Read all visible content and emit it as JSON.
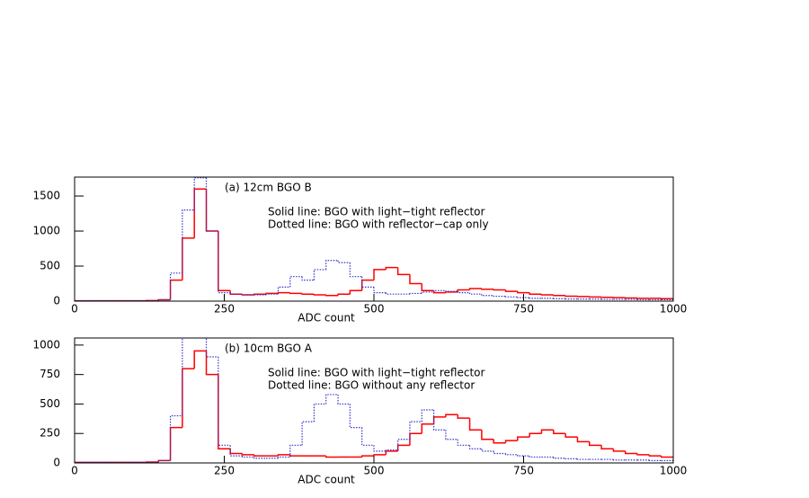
{
  "chart_data": [
    {
      "type": "histogram",
      "bins": [
        0,
        20,
        40,
        60,
        80,
        100,
        120,
        140,
        160,
        180,
        200,
        220,
        240,
        260,
        280,
        300,
        320,
        340,
        360,
        380,
        400,
        420,
        440,
        460,
        480,
        500,
        520,
        540,
        560,
        580,
        600,
        620,
        640,
        660,
        680,
        700,
        720,
        740,
        760,
        780,
        800,
        820,
        840,
        860,
        880,
        900,
        920,
        940,
        960,
        980,
        1000
      ],
      "series": [
        {
          "name": "Solid line: BGO with light−tight reflector",
          "color": "#ff0000",
          "line_style": "solid",
          "values": [
            5,
            5,
            5,
            5,
            5,
            5,
            8,
            20,
            300,
            900,
            1600,
            1000,
            150,
            100,
            90,
            100,
            110,
            120,
            110,
            100,
            90,
            80,
            100,
            150,
            300,
            450,
            480,
            380,
            250,
            150,
            120,
            130,
            160,
            180,
            170,
            160,
            140,
            120,
            100,
            90,
            80,
            70,
            65,
            60,
            55,
            50,
            45,
            40,
            40,
            35
          ]
        },
        {
          "name": "Dotted line: BGO with reflector−cap only",
          "color": "#3333cc",
          "line_style": "dotted",
          "values": [
            5,
            5,
            5,
            5,
            5,
            5,
            5,
            20,
            400,
            1300,
            1760,
            1000,
            120,
            100,
            90,
            90,
            100,
            200,
            350,
            300,
            450,
            580,
            550,
            350,
            200,
            120,
            100,
            100,
            110,
            130,
            150,
            140,
            120,
            100,
            80,
            70,
            60,
            50,
            40,
            40,
            35,
            30,
            30,
            30,
            25,
            25,
            25,
            20,
            20,
            20
          ]
        }
      ],
      "annotations": [
        "(a) 12cm BGO B"
      ],
      "xlabel": "ADC count",
      "xlim": [
        0,
        1000
      ],
      "xticks": [
        0,
        250,
        500,
        750,
        1000
      ],
      "ylim": [
        0,
        1770
      ],
      "yticks": [
        0,
        500,
        1000,
        1500
      ]
    },
    {
      "type": "histogram",
      "bins": [
        0,
        20,
        40,
        60,
        80,
        100,
        120,
        140,
        160,
        180,
        200,
        220,
        240,
        260,
        280,
        300,
        320,
        340,
        360,
        380,
        400,
        420,
        440,
        460,
        480,
        500,
        520,
        540,
        560,
        580,
        600,
        620,
        640,
        660,
        680,
        700,
        720,
        740,
        760,
        780,
        800,
        820,
        840,
        860,
        880,
        900,
        920,
        940,
        960,
        980,
        1000
      ],
      "series": [
        {
          "name": "Solid line: BGO with light−tight reflector",
          "color": "#ff0000",
          "line_style": "solid",
          "values": [
            5,
            5,
            5,
            5,
            5,
            5,
            8,
            20,
            300,
            800,
            950,
            750,
            120,
            80,
            70,
            60,
            60,
            70,
            60,
            60,
            60,
            50,
            50,
            50,
            60,
            70,
            100,
            150,
            250,
            330,
            390,
            410,
            380,
            280,
            200,
            170,
            190,
            220,
            250,
            280,
            250,
            220,
            180,
            150,
            120,
            100,
            80,
            70,
            60,
            50
          ]
        },
        {
          "name": "Dotted line: BGO without any reflector",
          "color": "#3333cc",
          "line_style": "dotted",
          "values": [
            5,
            5,
            5,
            5,
            5,
            5,
            5,
            20,
            400,
            1100,
            1100,
            900,
            150,
            60,
            50,
            40,
            40,
            50,
            150,
            350,
            500,
            580,
            500,
            300,
            150,
            100,
            110,
            200,
            350,
            450,
            280,
            200,
            150,
            120,
            100,
            80,
            70,
            60,
            50,
            50,
            40,
            35,
            30,
            30,
            30,
            25,
            25,
            25,
            20,
            20
          ]
        }
      ],
      "annotations": [
        "(b) 10cm BGO A"
      ],
      "xlabel": "ADC count",
      "xlim": [
        0,
        1000
      ],
      "xticks": [
        0,
        250,
        500,
        750,
        1000
      ],
      "ylim": [
        0,
        1060
      ],
      "yticks": [
        0,
        250,
        500,
        750,
        1000
      ]
    }
  ]
}
